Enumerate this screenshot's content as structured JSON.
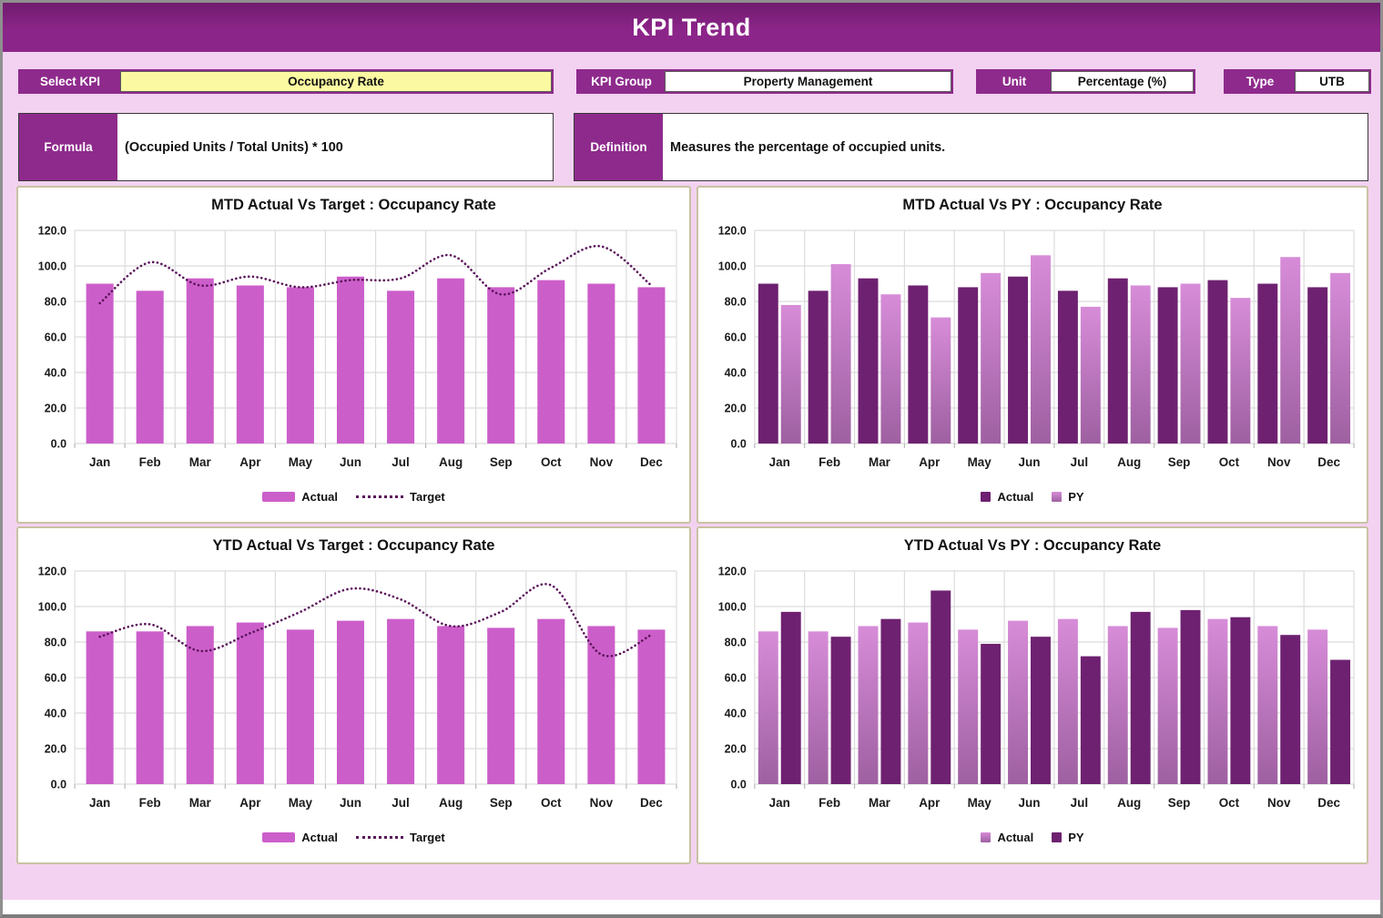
{
  "window": {
    "title": "KPI Trend"
  },
  "controls": {
    "select_kpi": {
      "label": "Select KPI",
      "value": "Occupancy Rate"
    },
    "kpi_group": {
      "label": "KPI Group",
      "value": "Property Management"
    },
    "unit": {
      "label": "Unit",
      "value": "Percentage (%)"
    },
    "type": {
      "label": "Type",
      "value": "UTB"
    },
    "formula": {
      "label": "Formula",
      "value": "(Occupied Units / Total Units) * 100"
    },
    "definition": {
      "label": "Definition",
      "value": "Measures the percentage of occupied units."
    }
  },
  "colors": {
    "header_purple": "#8C2589",
    "accent_purple": "#8E2A8C",
    "page_pink": "#F3D2F1",
    "field_yellow": "#FBF9A2",
    "chart_border": "#C9C2A3",
    "bar_orchid": "#CC5ECA",
    "bar_dark_purple": "#6E2170",
    "py_gradient_top": "#D78CD8",
    "py_gradient_bottom": "#9E60A1",
    "target_line": "#5A145A",
    "gridline": "#DCDCDC"
  },
  "chart_data": [
    {
      "id": "mtd-actual-vs-target",
      "type": "bar",
      "title": "MTD Actual Vs Target : Occupancy Rate",
      "categories": [
        "Jan",
        "Feb",
        "Mar",
        "Apr",
        "May",
        "Jun",
        "Jul",
        "Aug",
        "Sep",
        "Oct",
        "Nov",
        "Dec"
      ],
      "series": [
        {
          "name": "Actual",
          "kind": "bar",
          "color": "#CC5ECA",
          "values": [
            90,
            86,
            93,
            89,
            88,
            94,
            86,
            93,
            88,
            92,
            90,
            88
          ]
        },
        {
          "name": "Target",
          "kind": "dotted-line",
          "color": "#5A145A",
          "values": [
            79,
            102,
            89,
            94,
            88,
            92,
            93,
            106,
            84,
            99,
            111,
            89
          ]
        }
      ],
      "ylim": [
        0,
        120
      ],
      "ytick_step": 20,
      "grid": true,
      "legend_position": "bottom"
    },
    {
      "id": "mtd-actual-vs-py",
      "type": "bar",
      "title": "MTD Actual Vs PY : Occupancy Rate",
      "categories": [
        "Jan",
        "Feb",
        "Mar",
        "Apr",
        "May",
        "Jun",
        "Jul",
        "Aug",
        "Sep",
        "Oct",
        "Nov",
        "Dec"
      ],
      "series": [
        {
          "name": "Actual",
          "kind": "bar",
          "color": "#6E2170",
          "values": [
            90,
            86,
            93,
            89,
            88,
            94,
            86,
            93,
            88,
            92,
            90,
            88
          ]
        },
        {
          "name": "PY",
          "kind": "bar",
          "gradient": [
            "#D78CD8",
            "#9E60A1"
          ],
          "values": [
            78,
            101,
            84,
            71,
            96,
            106,
            77,
            89,
            90,
            82,
            105,
            96
          ]
        }
      ],
      "ylim": [
        0,
        120
      ],
      "ytick_step": 20,
      "grid": true,
      "legend_position": "bottom"
    },
    {
      "id": "ytd-actual-vs-target",
      "type": "bar",
      "title": "YTD Actual Vs Target : Occupancy Rate",
      "categories": [
        "Jan",
        "Feb",
        "Mar",
        "Apr",
        "May",
        "Jun",
        "Jul",
        "Aug",
        "Sep",
        "Oct",
        "Nov",
        "Dec"
      ],
      "series": [
        {
          "name": "Actual",
          "kind": "bar",
          "color": "#CC5ECA",
          "values": [
            86,
            86,
            89,
            91,
            87,
            92,
            93,
            89,
            88,
            93,
            89,
            87
          ]
        },
        {
          "name": "Target",
          "kind": "dotted-line",
          "color": "#5A145A",
          "values": [
            83,
            90,
            75,
            85,
            97,
            110,
            104,
            89,
            97,
            112,
            73,
            84
          ]
        }
      ],
      "ylim": [
        0,
        120
      ],
      "ytick_step": 20,
      "grid": true,
      "legend_position": "bottom"
    },
    {
      "id": "ytd-actual-vs-py",
      "type": "bar",
      "title": "YTD Actual Vs PY : Occupancy Rate",
      "categories": [
        "Jan",
        "Feb",
        "Mar",
        "Apr",
        "May",
        "Jun",
        "Jul",
        "Aug",
        "Sep",
        "Oct",
        "Nov",
        "Dec"
      ],
      "series": [
        {
          "name": "Actual",
          "kind": "bar",
          "gradient": [
            "#D78CD8",
            "#9E60A1"
          ],
          "values": [
            86,
            86,
            89,
            91,
            87,
            92,
            93,
            89,
            88,
            93,
            89,
            87
          ]
        },
        {
          "name": "PY",
          "kind": "bar",
          "color": "#6E2170",
          "values": [
            97,
            83,
            93,
            109,
            79,
            83,
            72,
            97,
            98,
            94,
            84,
            70
          ]
        }
      ],
      "ylim": [
        0,
        120
      ],
      "ytick_step": 20,
      "grid": true,
      "legend_position": "bottom"
    }
  ]
}
